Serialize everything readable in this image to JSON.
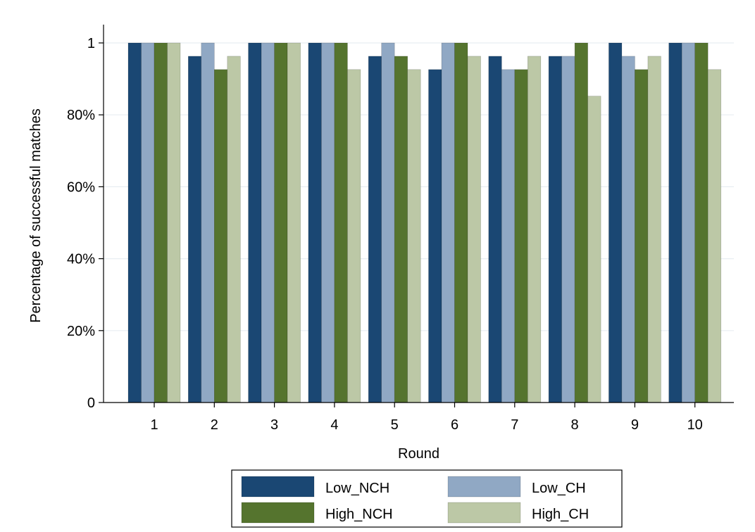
{
  "chart_data": {
    "type": "bar",
    "xlabel": "Round",
    "ylabel": "Percentage of successful matches",
    "categories": [
      "1",
      "2",
      "3",
      "4",
      "5",
      "6",
      "7",
      "8",
      "9",
      "10"
    ],
    "ylim": [
      0,
      1
    ],
    "yticks": [
      0,
      0.2,
      0.4,
      0.6,
      0.8,
      1
    ],
    "ytick_labels": [
      "0",
      "20%",
      "40%",
      "60%",
      "80%",
      "1"
    ],
    "grid": true,
    "legend_position": "bottom",
    "series": [
      {
        "name": "Low_NCH",
        "color": "#1a4773",
        "values": [
          1,
          0.963,
          1,
          1,
          0.963,
          0.926,
          0.963,
          0.963,
          1,
          1
        ]
      },
      {
        "name": "Low_CH",
        "color": "#90a8c4",
        "values": [
          1,
          1,
          1,
          1,
          1,
          1,
          0.926,
          0.963,
          0.963,
          1
        ]
      },
      {
        "name": "High_NCH",
        "color": "#55742e",
        "values": [
          1,
          0.926,
          1,
          1,
          0.963,
          1,
          0.926,
          1,
          0.926,
          1
        ]
      },
      {
        "name": "High_CH",
        "color": "#bcc8a6",
        "values": [
          1,
          0.963,
          1,
          0.926,
          0.926,
          0.963,
          0.963,
          0.852,
          0.963,
          0.926
        ]
      }
    ]
  }
}
